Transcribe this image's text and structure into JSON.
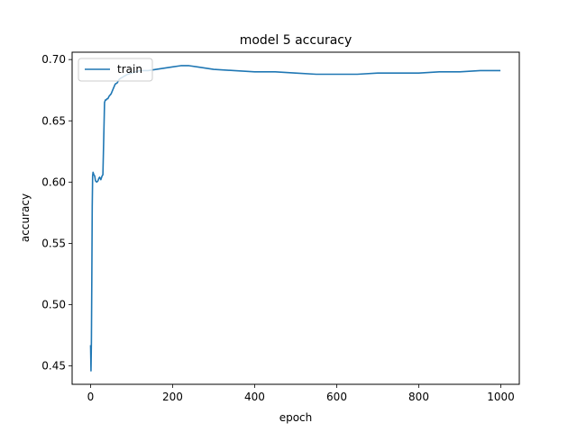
{
  "chart_data": {
    "type": "line",
    "title": "model 5 accuracy",
    "xlabel": "epoch",
    "ylabel": "accuracy",
    "xlim": [
      -45,
      1045
    ],
    "ylim": [
      0.435,
      0.706
    ],
    "xticks": [
      0,
      200,
      400,
      600,
      800,
      1000
    ],
    "yticks": [
      0.45,
      0.5,
      0.55,
      0.6,
      0.65,
      0.7
    ],
    "ytick_labels": [
      "0.45",
      "0.50",
      "0.55",
      "0.60",
      "0.65",
      "0.70"
    ],
    "legend": {
      "location": "upper-left",
      "entries": [
        "train"
      ]
    },
    "grid": false,
    "series": [
      {
        "name": "train",
        "color": "#1f77b4",
        "x": [
          0,
          1,
          2,
          3,
          4,
          5,
          6,
          7,
          8,
          10,
          12,
          15,
          18,
          20,
          22,
          25,
          28,
          30,
          32,
          34,
          36,
          38,
          40,
          42,
          45,
          50,
          55,
          60,
          65,
          70,
          80,
          90,
          100,
          110,
          120,
          140,
          160,
          180,
          200,
          220,
          240,
          260,
          280,
          300,
          350,
          400,
          450,
          500,
          550,
          600,
          650,
          700,
          750,
          800,
          850,
          900,
          950,
          999
        ],
        "y": [
          0.467,
          0.446,
          0.47,
          0.52,
          0.58,
          0.605,
          0.608,
          0.607,
          0.606,
          0.605,
          0.601,
          0.6,
          0.601,
          0.603,
          0.604,
          0.602,
          0.605,
          0.606,
          0.635,
          0.665,
          0.667,
          0.667,
          0.668,
          0.668,
          0.67,
          0.672,
          0.676,
          0.68,
          0.681,
          0.684,
          0.686,
          0.688,
          0.689,
          0.69,
          0.691,
          0.691,
          0.692,
          0.693,
          0.694,
          0.695,
          0.695,
          0.694,
          0.693,
          0.692,
          0.691,
          0.69,
          0.69,
          0.689,
          0.688,
          0.688,
          0.688,
          0.689,
          0.689,
          0.689,
          0.69,
          0.69,
          0.691,
          0.691
        ]
      }
    ]
  }
}
